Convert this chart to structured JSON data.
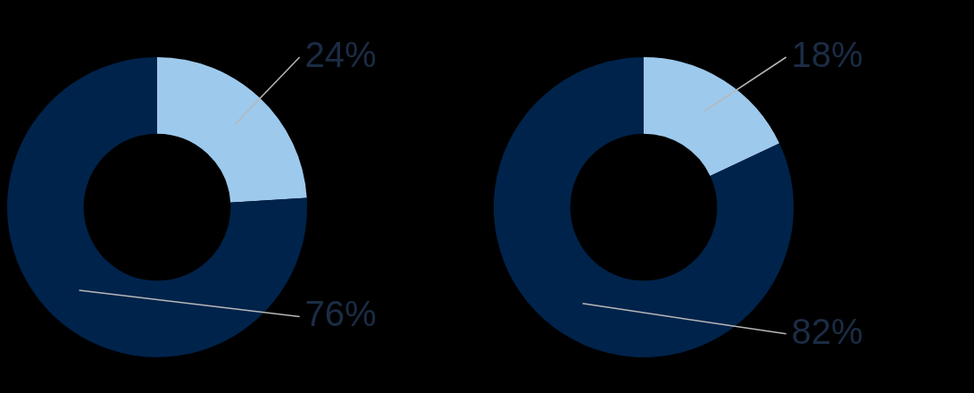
{
  "chart_data": [
    {
      "type": "donut",
      "categories": [
        null,
        null
      ],
      "values": [
        24,
        76
      ],
      "colors": [
        "#9dc9ec",
        "#00234b"
      ],
      "value_labels": [
        "24%",
        "76%"
      ]
    },
    {
      "type": "donut",
      "categories": [
        null,
        null
      ],
      "values": [
        18,
        82
      ],
      "colors": [
        "#9dc9ec",
        "#00234b"
      ],
      "value_labels": [
        "18%",
        "82%"
      ]
    }
  ]
}
